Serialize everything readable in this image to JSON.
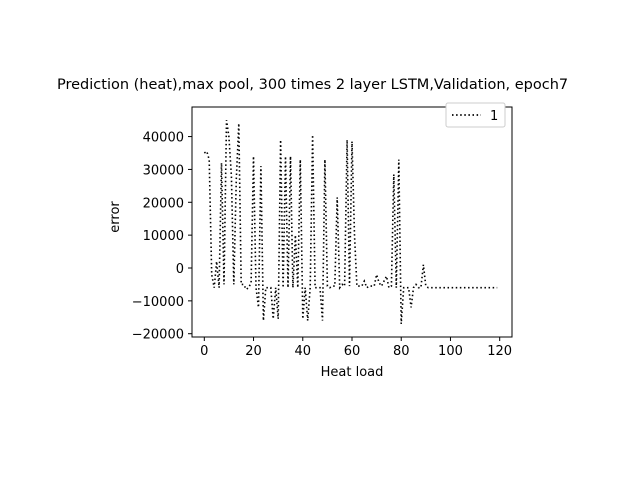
{
  "chart_data": {
    "type": "line",
    "title": "Prediction (heat),max pool, 300 times 2 layer LSTM,Validation, epoch7",
    "xlabel": "Heat load",
    "ylabel": "error",
    "xlim": [
      -5,
      125
    ],
    "ylim": [
      -21000,
      49000
    ],
    "xticks": [
      0,
      20,
      40,
      60,
      80,
      100,
      120
    ],
    "xtick_labels": [
      "0",
      "20",
      "40",
      "60",
      "80",
      "100",
      "120"
    ],
    "yticks": [
      -20000,
      -10000,
      0,
      10000,
      20000,
      30000,
      40000
    ],
    "ytick_labels": [
      "−20000",
      "−10000",
      "0",
      "10000",
      "20000",
      "30000",
      "40000"
    ],
    "grid": false,
    "legend_position": "top-right",
    "series": [
      {
        "name": "1",
        "color": "#000000",
        "line_style": "dotted",
        "x": [
          0,
          1,
          2,
          3,
          4,
          5,
          6,
          7,
          8,
          9,
          10,
          11,
          12,
          13,
          14,
          15,
          16,
          17,
          18,
          19,
          20,
          21,
          22,
          23,
          24,
          25,
          26,
          27,
          28,
          29,
          30,
          31,
          32,
          33,
          34,
          35,
          36,
          37,
          38,
          39,
          40,
          41,
          42,
          43,
          44,
          45,
          46,
          47,
          48,
          49,
          50,
          51,
          52,
          53,
          54,
          55,
          56,
          57,
          58,
          59,
          60,
          61,
          62,
          63,
          64,
          65,
          66,
          67,
          68,
          69,
          70,
          71,
          72,
          73,
          74,
          75,
          76,
          77,
          78,
          79,
          80,
          81,
          82,
          83,
          84,
          85,
          86,
          87,
          88,
          89,
          90,
          91,
          92,
          93,
          94,
          95,
          96,
          97,
          98,
          99,
          100,
          101,
          102,
          103,
          104,
          105,
          106,
          107,
          108,
          109,
          110,
          111,
          112,
          113,
          114,
          115,
          116,
          117,
          118,
          119
        ],
        "y": [
          35000,
          35500,
          33000,
          -2000,
          -6000,
          2000,
          -6000,
          32000,
          -5000,
          45000,
          40000,
          28000,
          -5000,
          27000,
          44000,
          -5000,
          -5000,
          -6500,
          -6000,
          -4500,
          34000,
          -6000,
          -12000,
          31000,
          -16000,
          -6000,
          -6000,
          -6000,
          -15500,
          -6000,
          -15500,
          39000,
          -6000,
          34000,
          -6000,
          34000,
          -6000,
          10000,
          -6000,
          33000,
          -15500,
          -6000,
          -16000,
          -6000,
          40500,
          -6000,
          -6000,
          -6000,
          -16000,
          33000,
          -5500,
          -6000,
          -5500,
          -5500,
          21500,
          -6000,
          -5000,
          -5500,
          39000,
          -5500,
          38500,
          10000,
          -5500,
          -5500,
          -5500,
          -4000,
          -6000,
          -5500,
          -5500,
          -5500,
          -2000,
          -4500,
          -5500,
          -4000,
          -2500,
          -6000,
          -5500,
          28500,
          -6000,
          33000,
          -17000,
          -6000,
          -6000,
          -6000,
          -12000,
          -6000,
          -5000,
          -6000,
          -6000,
          1000,
          -5500,
          -6000,
          -6000,
          -6000,
          -6000,
          -6000,
          -6000,
          -6000,
          -6000,
          -6000,
          -6000,
          -6000,
          -6000,
          -6000,
          -6000,
          -6000,
          -6000,
          -6000,
          -6000,
          -6000,
          -6000,
          -6000,
          -6000,
          -6000,
          -6000,
          -6000,
          -6000,
          -6000,
          -6000,
          -6000
        ]
      }
    ]
  }
}
